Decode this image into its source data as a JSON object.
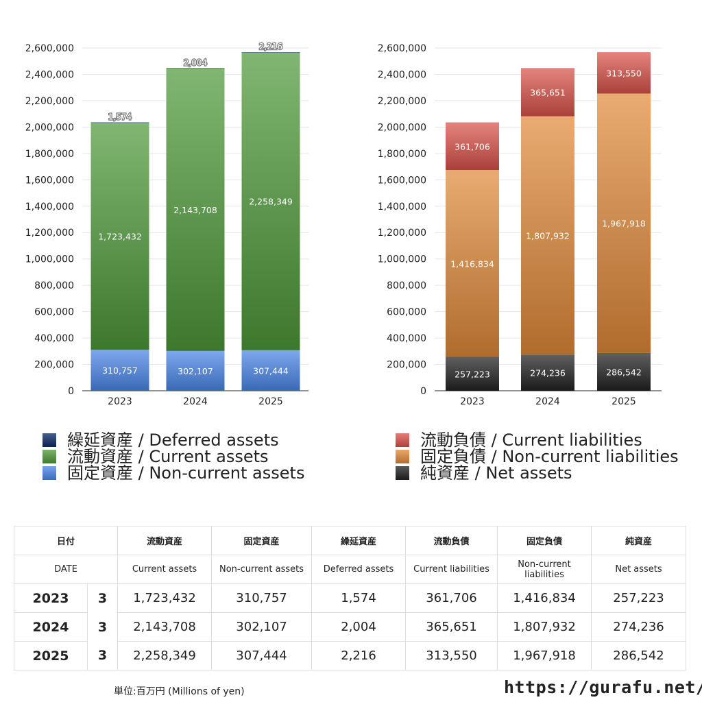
{
  "chart_data": [
    {
      "type": "bar",
      "stacked": true,
      "categories": [
        "2023",
        "2024",
        "2025"
      ],
      "ylim": [
        0,
        2600000
      ],
      "yticks": [
        0,
        200000,
        400000,
        600000,
        800000,
        1000000,
        1200000,
        1400000,
        1600000,
        1800000,
        2000000,
        2200000,
        2400000,
        2600000
      ],
      "ytick_labels": [
        "0",
        "200,000",
        "400,000",
        "600,000",
        "800,000",
        "1,000,000",
        "1,200,000",
        "1,400,000",
        "1,600,000",
        "1,800,000",
        "2,000,000",
        "2,200,000",
        "2,400,000",
        "2,600,000"
      ],
      "grid": true,
      "series": [
        {
          "name": "固定資産 / Non-current assets",
          "values": [
            310757,
            302107,
            307444
          ],
          "labels": [
            "310,757",
            "302,107",
            "307,444"
          ],
          "color": "#4a86e8"
        },
        {
          "name": "流動資産 / Current assets",
          "values": [
            1723432,
            2143708,
            2258349
          ],
          "labels": [
            "1,723,432",
            "2,143,708",
            "2,258,349"
          ],
          "color": "#4e9a3a"
        },
        {
          "name": "繰延資産 / Deferred assets",
          "values": [
            1574,
            2004,
            2216
          ],
          "labels": [
            "1,574",
            "2,004",
            "2,216"
          ],
          "color": "#0b2a66"
        }
      ],
      "legend_order": [
        2,
        1,
        0
      ],
      "legend_placement": "bottom"
    },
    {
      "type": "bar",
      "stacked": true,
      "categories": [
        "2023",
        "2024",
        "2025"
      ],
      "ylim": [
        0,
        2600000
      ],
      "yticks": [
        0,
        200000,
        400000,
        600000,
        800000,
        1000000,
        1200000,
        1400000,
        1600000,
        1800000,
        2000000,
        2200000,
        2400000,
        2600000
      ],
      "ytick_labels": [
        "0",
        "200,000",
        "400,000",
        "600,000",
        "800,000",
        "1,000,000",
        "1,200,000",
        "1,400,000",
        "1,600,000",
        "1,800,000",
        "2,000,000",
        "2,200,000",
        "2,400,000",
        "2,600,000"
      ],
      "grid": true,
      "series": [
        {
          "name": "純資産 / Net assets",
          "values": [
            257223,
            274236,
            286542
          ],
          "labels": [
            "257,223",
            "274,236",
            "286,542"
          ],
          "color": "#222222"
        },
        {
          "name": "固定負債 / Non-current liabilities",
          "values": [
            1416834,
            1807932,
            1967918
          ],
          "labels": [
            "1,416,834",
            "1,807,932",
            "1,967,918"
          ],
          "color": "#e08a3a"
        },
        {
          "name": "流動負債 / Current liabilities",
          "values": [
            361706,
            365651,
            313550
          ],
          "labels": [
            "361,706",
            "365,651",
            "313,550"
          ],
          "color": "#d9534a"
        }
      ],
      "legend_order": [
        2,
        1,
        0
      ],
      "legend_placement": "bottom"
    }
  ],
  "table": {
    "header_ja": [
      "日付",
      "流動資産",
      "固定資産",
      "繰延資産",
      "流動負債",
      "固定負債",
      "純資産"
    ],
    "header_en": [
      "DATE",
      "Current assets",
      "Non-current assets",
      "Deferred assets",
      "Current liabilities",
      "Non-current liabilities",
      "Net assets"
    ],
    "rows": [
      {
        "year": "2023",
        "month": "3",
        "cells": [
          "1,723,432",
          "310,757",
          "1,574",
          "361,706",
          "1,416,834",
          "257,223"
        ]
      },
      {
        "year": "2024",
        "month": "3",
        "cells": [
          "2,143,708",
          "302,107",
          "2,004",
          "365,651",
          "1,807,932",
          "274,236"
        ]
      },
      {
        "year": "2025",
        "month": "3",
        "cells": [
          "2,258,349",
          "307,444",
          "2,216",
          "313,550",
          "1,967,918",
          "286,542"
        ]
      }
    ]
  },
  "footer": {
    "unit": "単位:百万円 (Millions of yen)",
    "source": "https://gurafu.net/"
  }
}
